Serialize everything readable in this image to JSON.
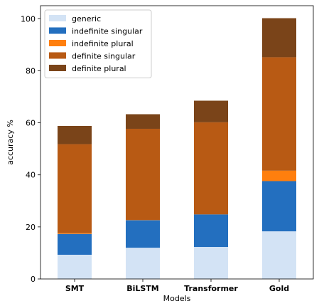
{
  "chart_data": {
    "type": "bar",
    "stacked": true,
    "categories": [
      "SMT",
      "BiLSTM",
      "Transformer",
      "Gold"
    ],
    "series": [
      {
        "name": "generic",
        "color": "#d3e3f5",
        "values": [
          9.3,
          12.0,
          12.3,
          18.3
        ]
      },
      {
        "name": "indefinite singular",
        "color": "#236fbf",
        "values": [
          8.0,
          10.6,
          12.5,
          19.3
        ]
      },
      {
        "name": "indefinite plural",
        "color": "#ff7f0e",
        "values": [
          0.3,
          0.1,
          0.0,
          4.0
        ]
      },
      {
        "name": "definite singular",
        "color": "#b85a14",
        "values": [
          34.2,
          35.0,
          35.4,
          43.6
        ]
      },
      {
        "name": "definite plural",
        "color": "#7a4419",
        "values": [
          7.0,
          5.6,
          8.3,
          15.0
        ]
      }
    ],
    "title": "",
    "xlabel": "Models",
    "ylabel": "accuracy %",
    "ylim": [
      0,
      105
    ],
    "yticks": [
      "0",
      "20",
      "40",
      "60",
      "80",
      "100"
    ],
    "grid": false,
    "legend_position": "top-left"
  }
}
